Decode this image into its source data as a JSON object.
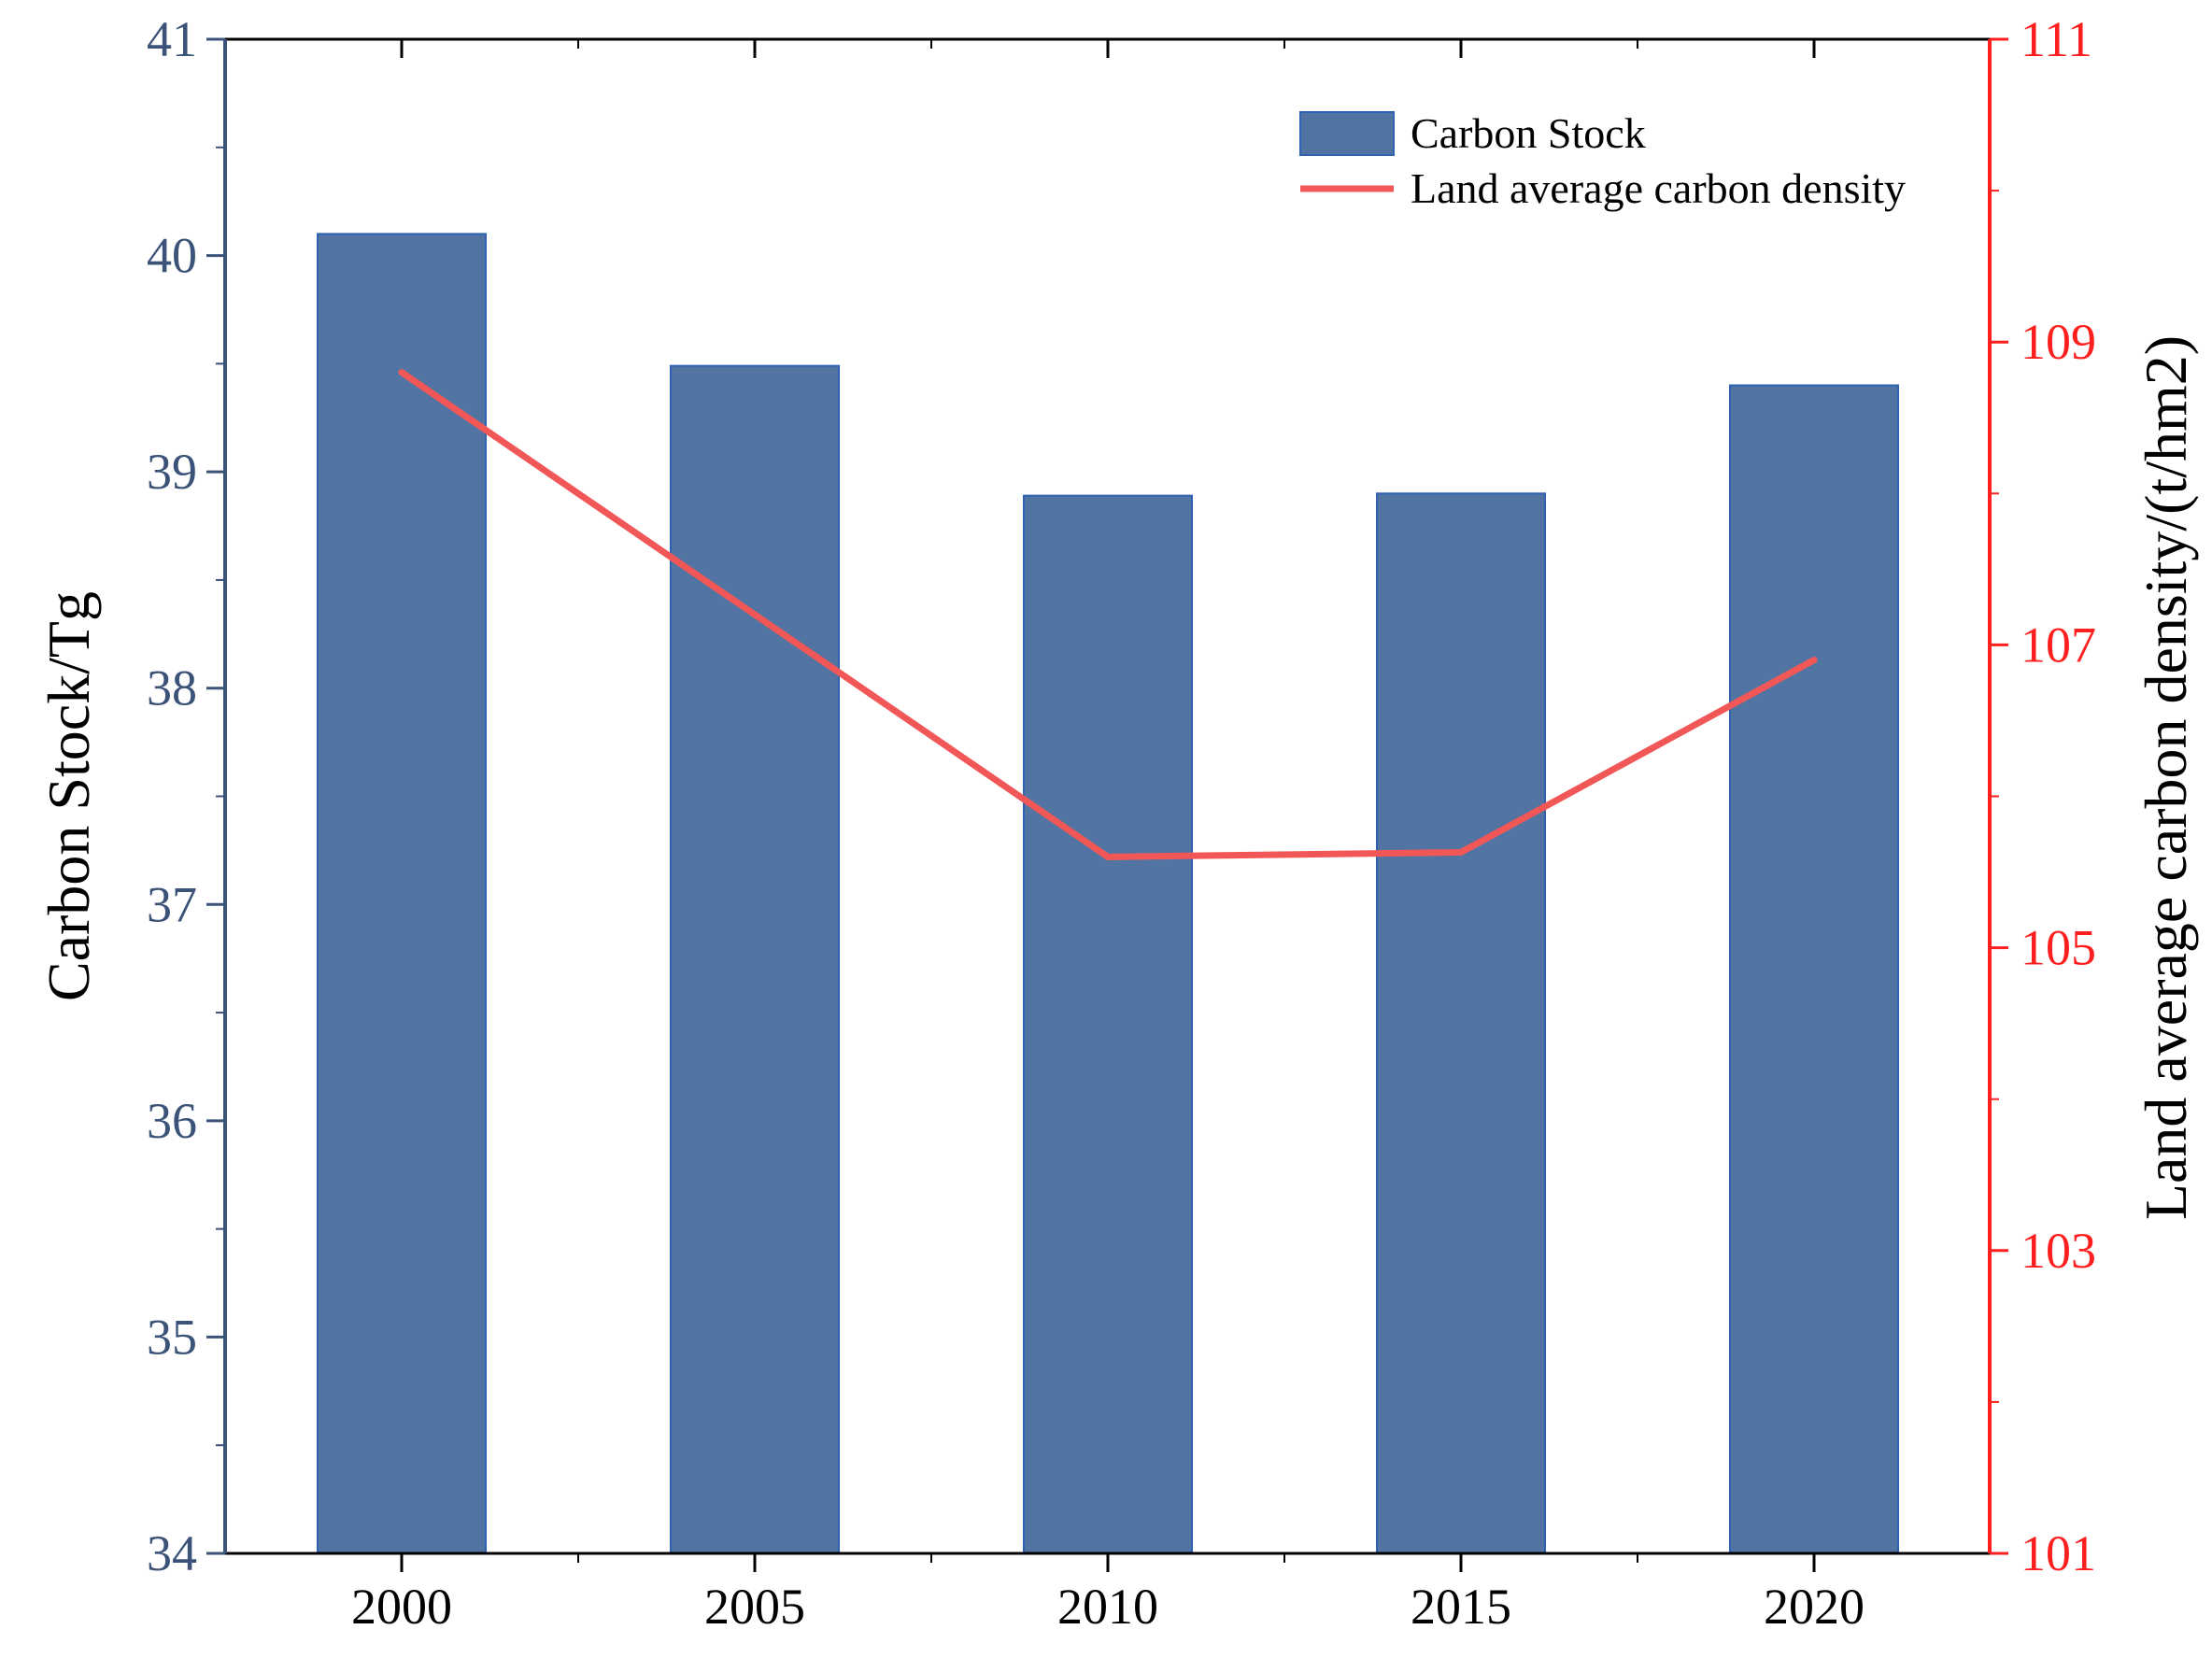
{
  "colors": {
    "bar_fill": "#5174a3",
    "bar_stroke": "#2f62b3",
    "left_axis": "#3b5378",
    "left_tick_text": "#3b5378",
    "right_axis": "#ff1f1f",
    "right_tick_text": "#ff1f1f",
    "line": "#f25757",
    "frame": "#000000"
  },
  "chart_data": {
    "type": "bar",
    "combo": "bar + line, dual y-axis",
    "title": "",
    "categories": [
      "2000",
      "2005",
      "2010",
      "2015",
      "2020"
    ],
    "series": [
      {
        "name": "Carbon Stock",
        "type": "bar",
        "axis": "left",
        "values": [
          40.1,
          39.49,
          38.89,
          38.9,
          39.4
        ]
      },
      {
        "name": "Land average carbon density",
        "type": "line",
        "axis": "right",
        "values": [
          108.8,
          107.2,
          105.6,
          105.63,
          106.9
        ]
      }
    ],
    "xlabel": "",
    "ylabel_left": "Carbon Stock/Tg",
    "ylabel_right": "Land average carbon density/(t/hm2)",
    "ylim_left": [
      34,
      41
    ],
    "yticks_left": [
      34,
      35,
      36,
      37,
      38,
      39,
      40,
      41
    ],
    "ylim_right": [
      101,
      111
    ],
    "yticks_right": [
      101,
      103,
      105,
      107,
      109,
      111
    ],
    "legend": {
      "placement": "top-right",
      "entries": [
        "Carbon Stock",
        "Land average carbon density"
      ]
    },
    "grid": false
  }
}
